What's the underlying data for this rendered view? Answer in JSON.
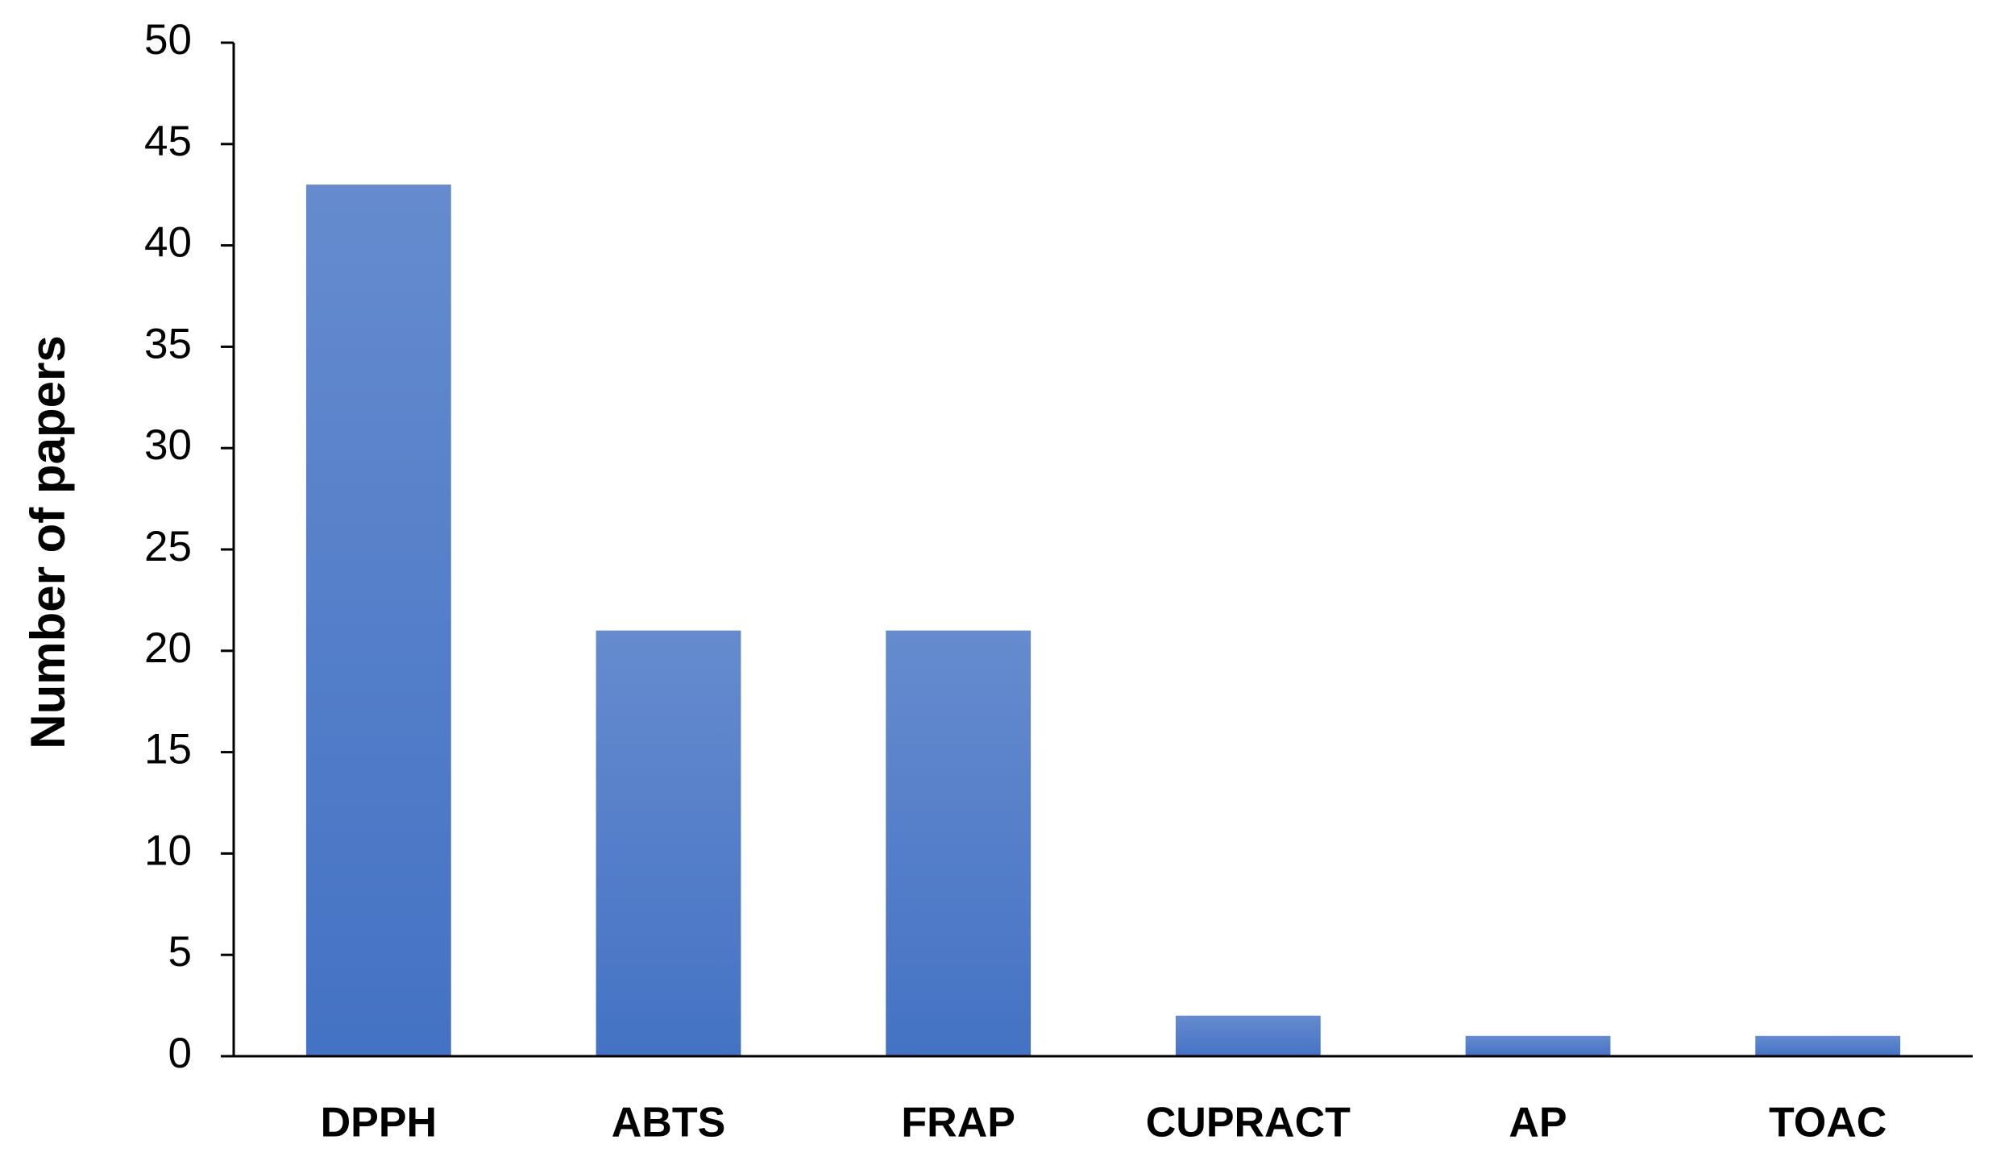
{
  "chart_data": {
    "type": "bar",
    "y_label": "Number of papers",
    "categories": [
      "DPPH",
      "ABTS",
      "FRAP",
      "CUPRACT",
      "AP",
      "TOAC"
    ],
    "values": [
      43,
      21,
      21,
      2,
      1,
      1
    ],
    "color": "#4472c4",
    "ylim": [
      0,
      50
    ],
    "yticks": [
      0,
      5,
      10,
      15,
      20,
      25,
      30,
      35,
      40,
      45,
      50
    ],
    "grid": false
  }
}
